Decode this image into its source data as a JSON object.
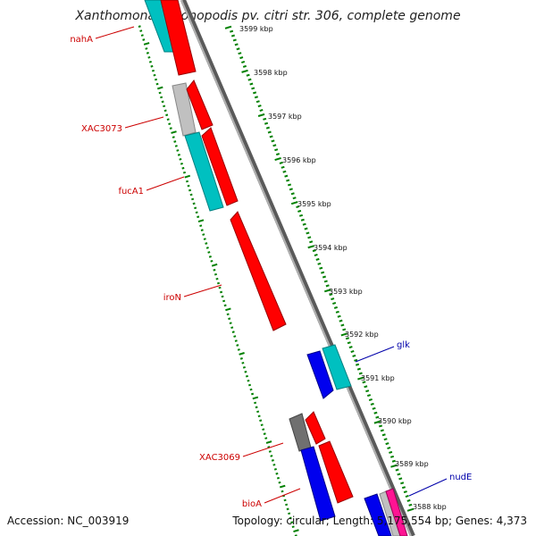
{
  "title": "Xanthomonas axonopodis pv. citri str. 306, complete genome",
  "footer": {
    "accession": "Accession: NC_003919",
    "topology": "Topology: circular; Length: 5,175,554 bp; Genes: 4,373"
  },
  "ruler": {
    "ticks": [
      "3599 kbp",
      "3598 kbp",
      "3597 kbp",
      "3596 kbp",
      "3595 kbp",
      "3594 kbp",
      "3593 kbp",
      "3592 kbp",
      "3591 kbp",
      "3590 kbp",
      "3589 kbp",
      "3588 kbp"
    ]
  },
  "colors": {
    "cds": "#ff0000",
    "trna": "#00c0c0",
    "other": "#0000ee",
    "gray": "#c0c0c0",
    "dark_gray": "#707070",
    "magenta": "#ff1493",
    "backbone": "#888888",
    "forward_label": "#cc0000",
    "reverse_label": "#0000aa",
    "tick": "#008000"
  },
  "gene_labels": {
    "left": [
      "nahA",
      "XAC3073",
      "fucA1",
      "iroN",
      "XAC3069",
      "bioA"
    ],
    "right": [
      "glk",
      "nudE"
    ]
  }
}
